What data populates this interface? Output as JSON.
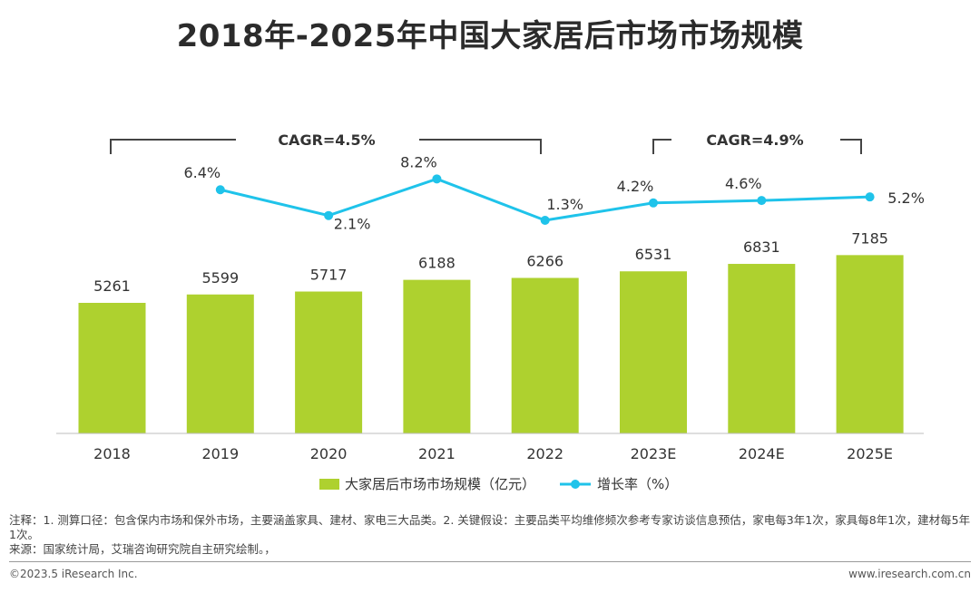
{
  "title": "2018年-2025年中国大家居后市场市场规模",
  "chart_data": {
    "type": "bar+line",
    "categories": [
      "2018",
      "2019",
      "2020",
      "2021",
      "2022",
      "2023E",
      "2024E",
      "2025E"
    ],
    "series": [
      {
        "name": "大家居后市场市场规模（亿元）",
        "type": "bar",
        "axis": "left",
        "values": [
          5261,
          5599,
          5717,
          6188,
          6266,
          6531,
          6831,
          7185
        ],
        "labels": [
          "5261",
          "5599",
          "5717",
          "6188",
          "6266",
          "6531",
          "6831",
          "7185"
        ],
        "color": "#aed12f"
      },
      {
        "name": "增长率（%）",
        "type": "line",
        "axis": "right",
        "values": [
          null,
          6.4,
          2.1,
          8.2,
          1.3,
          4.2,
          4.6,
          5.2
        ],
        "labels": [
          "",
          "6.4%",
          "2.1%",
          "8.2%",
          "1.3%",
          "4.2%",
          "4.6%",
          "5.2%"
        ],
        "color": "#1fc3ea"
      }
    ],
    "annotations": [
      {
        "text": "CAGR=4.5%",
        "from": "2018",
        "to": "2022"
      },
      {
        "text": "CAGR=4.9%",
        "from": "2023E",
        "to": "2025E"
      }
    ],
    "legend_position": "bottom-center",
    "grid": false
  },
  "note": "注释：1. 测算口径：包含保内市场和保外市场，主要涵盖家具、建材、家电三大品类。2. 关键假设：主要品类平均维修频次参考专家访谈信息预估，家电每3年1次，家具每8年1次，建材每5年1次。",
  "source": "来源：国家统计局，艾瑞咨询研究院自主研究绘制。，",
  "copyright": "©2023.5 iResearch Inc.",
  "website": "www.iresearch.com.cn"
}
